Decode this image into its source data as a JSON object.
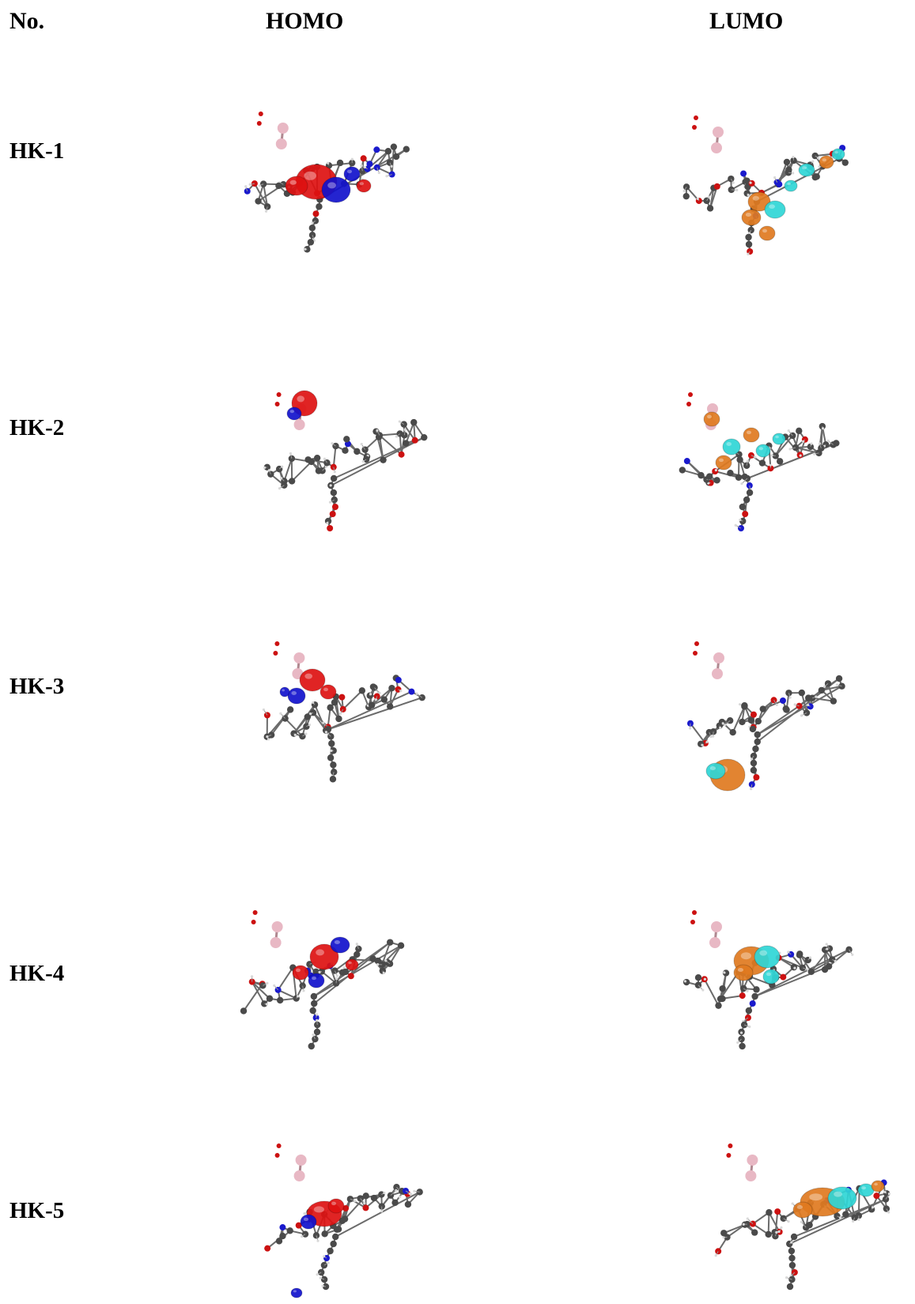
{
  "headers": {
    "no": "No.",
    "homo": "HOMO",
    "lumo": "LUMO"
  },
  "rows": [
    {
      "label": "HK-1",
      "homo_lobes": "red-blue",
      "lumo_lobes": "orange-cyan"
    },
    {
      "label": "HK-2",
      "homo_lobes": "red-blue",
      "lumo_lobes": "orange-cyan"
    },
    {
      "label": "HK-3",
      "homo_lobes": "red-blue",
      "lumo_lobes": "orange-cyan"
    },
    {
      "label": "HK-4",
      "homo_lobes": "red-blue",
      "lumo_lobes": "orange-cyan"
    },
    {
      "label": "HK-5",
      "homo_lobes": "red-blue",
      "lumo_lobes": "orange-cyan"
    }
  ],
  "colors": {
    "carbon": "#4a4a4a",
    "hydrogen": "#d9d9d9",
    "oxygen": "#cc1111",
    "nitrogen": "#1a1acc",
    "boron": "#e8b8c4",
    "homo_positive": "#dd1111",
    "homo_negative": "#1111cc",
    "lumo_positive": "#e07a1f",
    "lumo_negative": "#2fd6d6"
  }
}
